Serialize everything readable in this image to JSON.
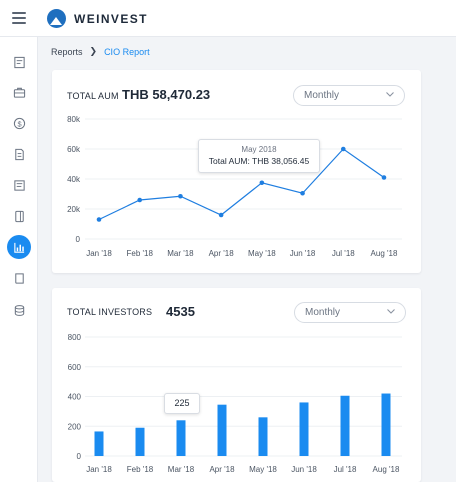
{
  "brand": {
    "name": "WEINVEST"
  },
  "sidebar": {
    "items": [
      {
        "icon": "report-icon",
        "active": false
      },
      {
        "icon": "briefcase-icon",
        "active": false
      },
      {
        "icon": "dollar-icon",
        "active": false
      },
      {
        "icon": "document-icon",
        "active": false
      },
      {
        "icon": "notes-icon",
        "active": false
      },
      {
        "icon": "tablet-icon",
        "active": false
      },
      {
        "icon": "bar-chart-icon",
        "active": true
      },
      {
        "icon": "book-icon",
        "active": false
      },
      {
        "icon": "database-icon",
        "active": false
      }
    ]
  },
  "breadcrumb": {
    "parent": "Reports",
    "current": "CIO Report"
  },
  "aum": {
    "label": "TOTAL AUM",
    "value": "THB 58,470.23",
    "period": "Monthly",
    "tooltip": {
      "title": "May 2018",
      "body": "Total AUM: THB 38,056.45"
    }
  },
  "investors": {
    "label": "TOTAL INVESTORS",
    "value": "4535",
    "period": "Monthly",
    "tooltip": {
      "body": "225"
    }
  },
  "colors": {
    "accent": "#1a8bf0",
    "line": "#1f7ee0",
    "bar": "#1a8bf0"
  },
  "chart_data": [
    {
      "type": "line",
      "categories": [
        "Jan '18",
        "Feb '18",
        "Mar '18",
        "Apr '18",
        "May '18",
        "Jun '18",
        "Jul '18",
        "Aug '18"
      ],
      "values": [
        13000,
        26000,
        28500,
        16000,
        37500,
        30500,
        60000,
        41000
      ],
      "ylim": [
        0,
        80000
      ],
      "yticks": [
        "0",
        "20k",
        "40k",
        "60k",
        "80k"
      ],
      "grid": true
    },
    {
      "type": "bar",
      "categories": [
        "Jan '18",
        "Feb '18",
        "Mar '18",
        "Apr '18",
        "May '18",
        "Jun '18",
        "Jul '18",
        "Aug '18"
      ],
      "values": [
        165,
        190,
        240,
        345,
        260,
        360,
        405,
        420
      ],
      "ylim": [
        0,
        800
      ],
      "yticks": [
        "0",
        "200",
        "400",
        "600",
        "800"
      ],
      "grid": true
    }
  ]
}
